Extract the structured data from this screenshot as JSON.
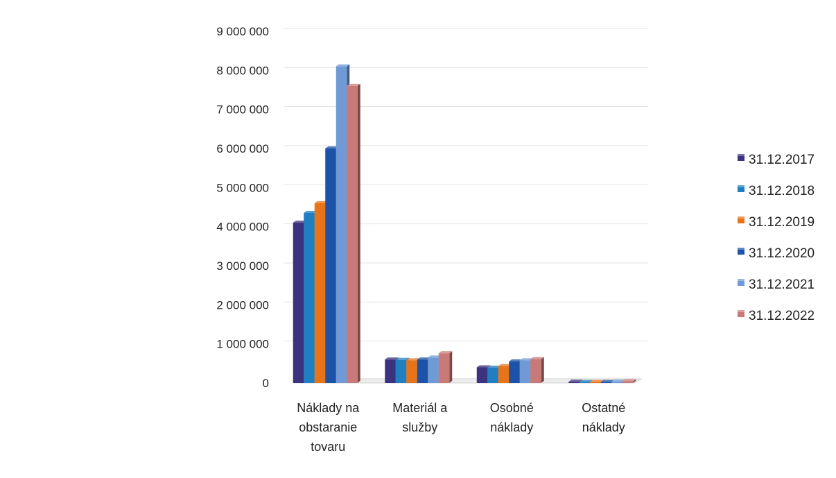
{
  "chart_data": {
    "type": "bar",
    "title": "",
    "xlabel": "",
    "ylabel": "",
    "categories": [
      [
        "Náklady na",
        "obstaranie",
        "tovaru"
      ],
      [
        "Materiál a",
        "služby"
      ],
      [
        "Osobné",
        "náklady"
      ],
      [
        "Ostatné",
        "náklady"
      ]
    ],
    "series": [
      {
        "name": "31.12.2017",
        "color": "#3b3280",
        "values": [
          4100000,
          600000,
          400000,
          30000
        ]
      },
      {
        "name": "31.12.2018",
        "color": "#1f7fc0",
        "values": [
          4350000,
          590000,
          390000,
          25000
        ]
      },
      {
        "name": "31.12.2019",
        "color": "#e8741a",
        "values": [
          4600000,
          580000,
          430000,
          25000
        ]
      },
      {
        "name": "31.12.2020",
        "color": "#1c52a8",
        "values": [
          6000000,
          600000,
          550000,
          25000
        ]
      },
      {
        "name": "31.12.2021",
        "color": "#6f9ad6",
        "values": [
          8100000,
          650000,
          580000,
          35000
        ]
      },
      {
        "name": "31.12.2022",
        "color": "#c97a78",
        "values": [
          7600000,
          760000,
          610000,
          45000
        ]
      }
    ],
    "yticks": [
      0,
      1000000,
      2000000,
      3000000,
      4000000,
      5000000,
      6000000,
      7000000,
      8000000,
      9000000
    ],
    "ytick_labels": [
      "0",
      "1 000 000",
      "2 000 000",
      "3 000 000",
      "4 000 000",
      "5 000 000",
      "6 000 000",
      "7 000 000",
      "8 000 000",
      "9 000 000"
    ],
    "ylim": [
      0,
      9000000
    ],
    "grid": true,
    "legend_position": "right"
  }
}
